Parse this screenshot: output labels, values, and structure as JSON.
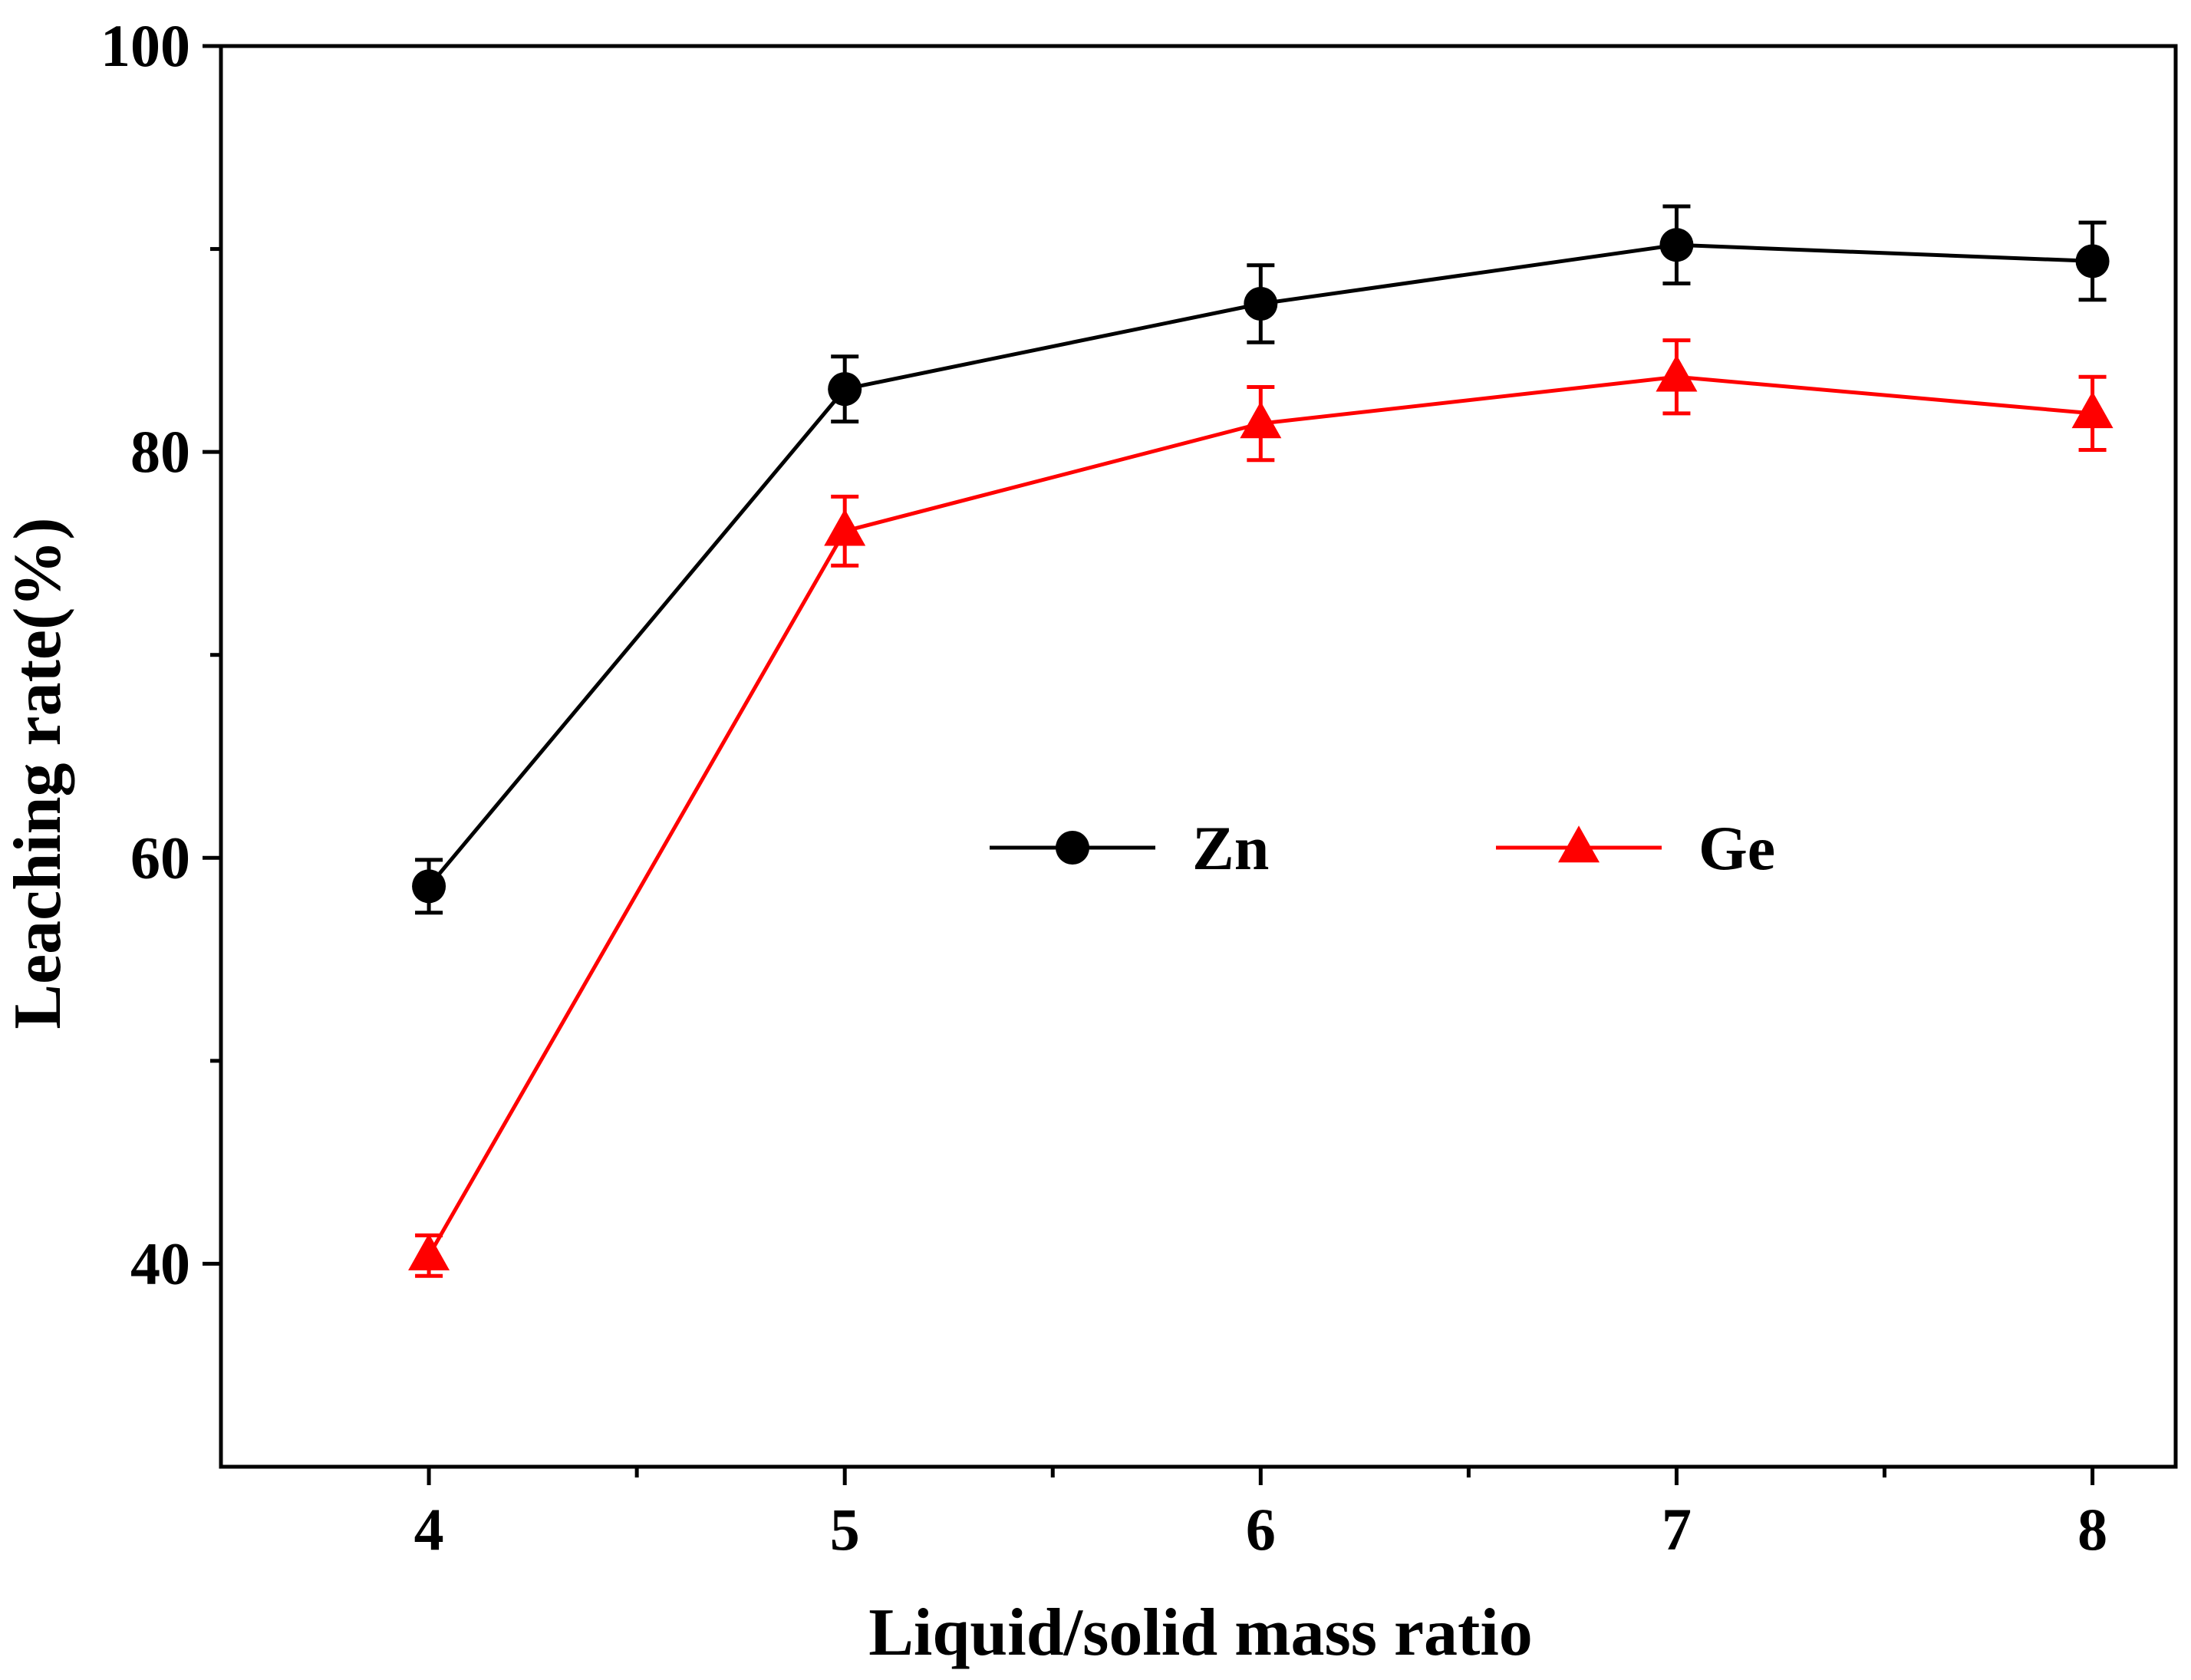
{
  "chart_data": {
    "type": "line",
    "title": "",
    "xlabel": "Liquid/solid mass ratio",
    "ylabel": "Leaching rate(%)",
    "x": [
      4,
      5,
      6,
      7,
      8
    ],
    "xlim": [
      3.5,
      8.2
    ],
    "ylim": [
      30,
      100
    ],
    "xticks": [
      4,
      5,
      6,
      7,
      8
    ],
    "yticks": [
      40,
      60,
      80,
      100
    ],
    "x_minor_ticks": [
      4.5,
      5.5,
      6.5,
      7.5
    ],
    "y_minor_ticks": [
      50,
      70,
      90
    ],
    "grid": false,
    "legend_position": "center-right",
    "series": [
      {
        "name": "Zn",
        "marker": "circle",
        "color": "#000000",
        "values": [
          58.6,
          83.1,
          87.3,
          90.2,
          89.4
        ],
        "errors": [
          1.3,
          1.6,
          1.9,
          1.9,
          1.9
        ]
      },
      {
        "name": "Ge",
        "marker": "triangle",
        "color": "#ff0000",
        "values": [
          40.4,
          76.1,
          81.4,
          83.7,
          81.9
        ],
        "errors": [
          1.0,
          1.7,
          1.8,
          1.8,
          1.8
        ]
      }
    ]
  }
}
